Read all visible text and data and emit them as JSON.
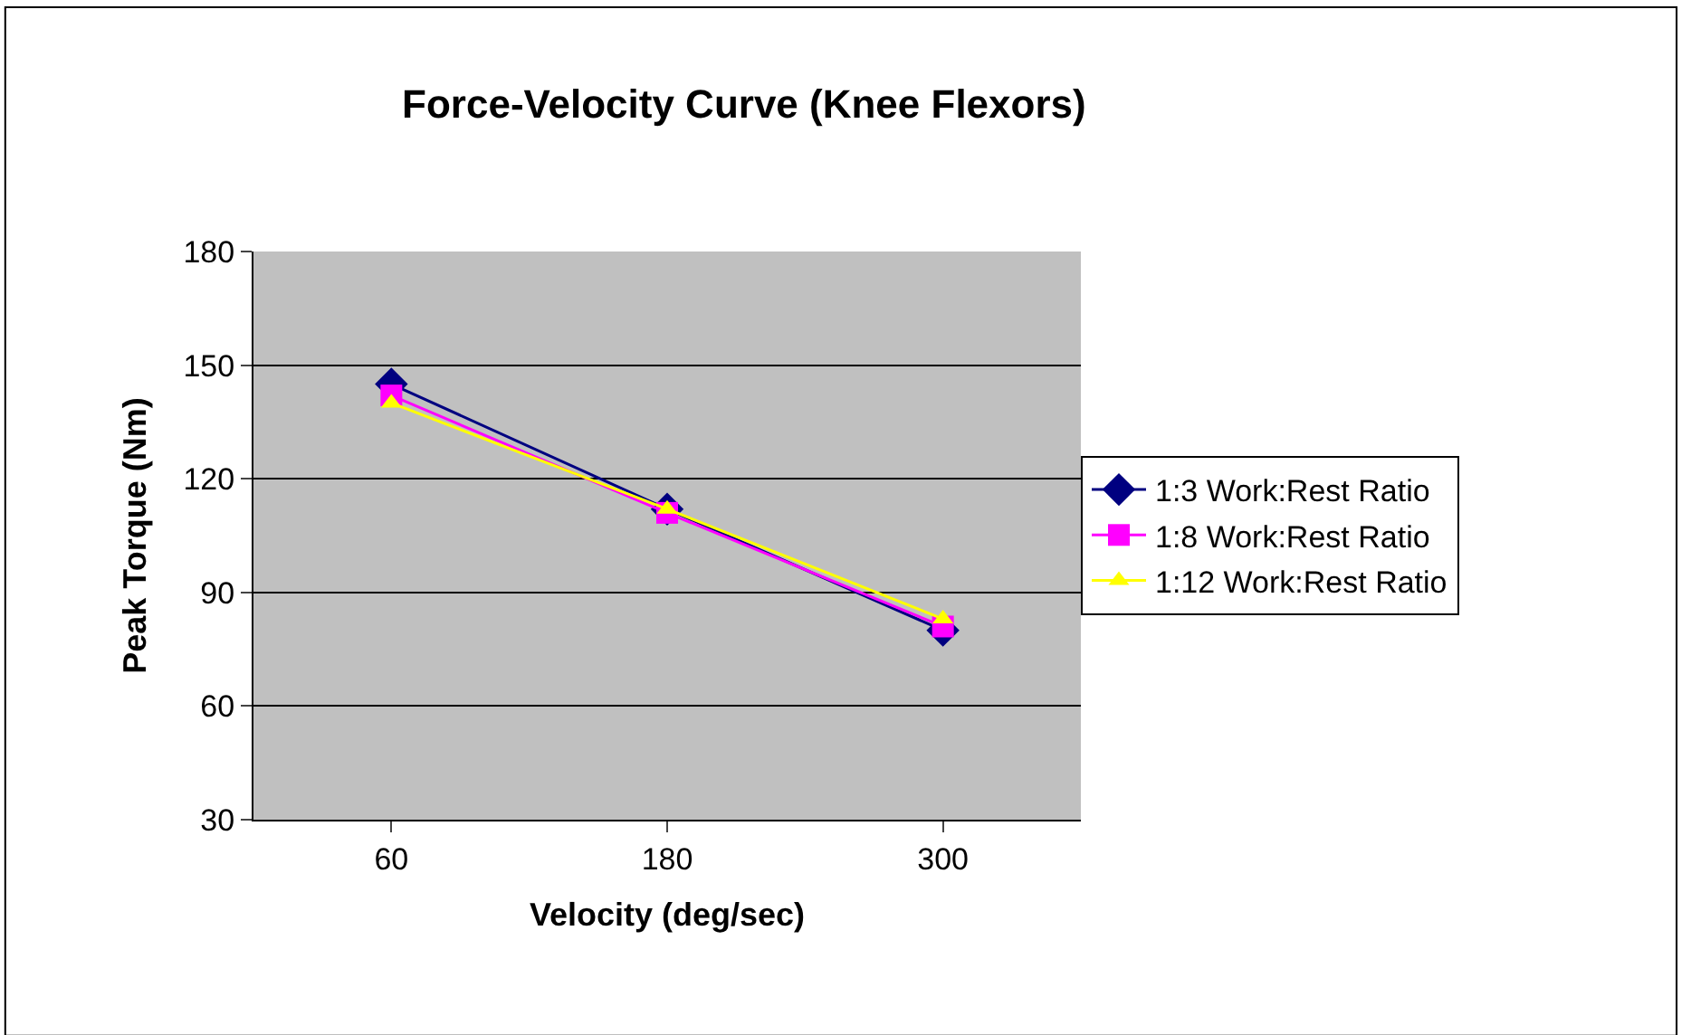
{
  "chart_data": {
    "type": "line",
    "title": "Force-Velocity Curve (Knee Flexors)",
    "xlabel": "Velocity (deg/sec)",
    "ylabel": "Peak Torque (Nm)",
    "categories": [
      "60",
      "180",
      "300"
    ],
    "series": [
      {
        "name": "1:3 Work:Rest Ratio",
        "color": "#000080",
        "marker": "diamond",
        "values": [
          145,
          112,
          80
        ]
      },
      {
        "name": "1:8 Work:Rest Ratio",
        "color": "#ff00ff",
        "marker": "square",
        "values": [
          142,
          111,
          81
        ]
      },
      {
        "name": "1:12 Work:Rest Ratio",
        "color": "#ffff00",
        "marker": "triangle",
        "values": [
          140,
          112,
          83
        ]
      }
    ],
    "ylim": [
      30,
      180
    ],
    "yticks": [
      30,
      60,
      90,
      120,
      150,
      180
    ],
    "grid": "y",
    "legend": "right",
    "line_style": "solid"
  }
}
